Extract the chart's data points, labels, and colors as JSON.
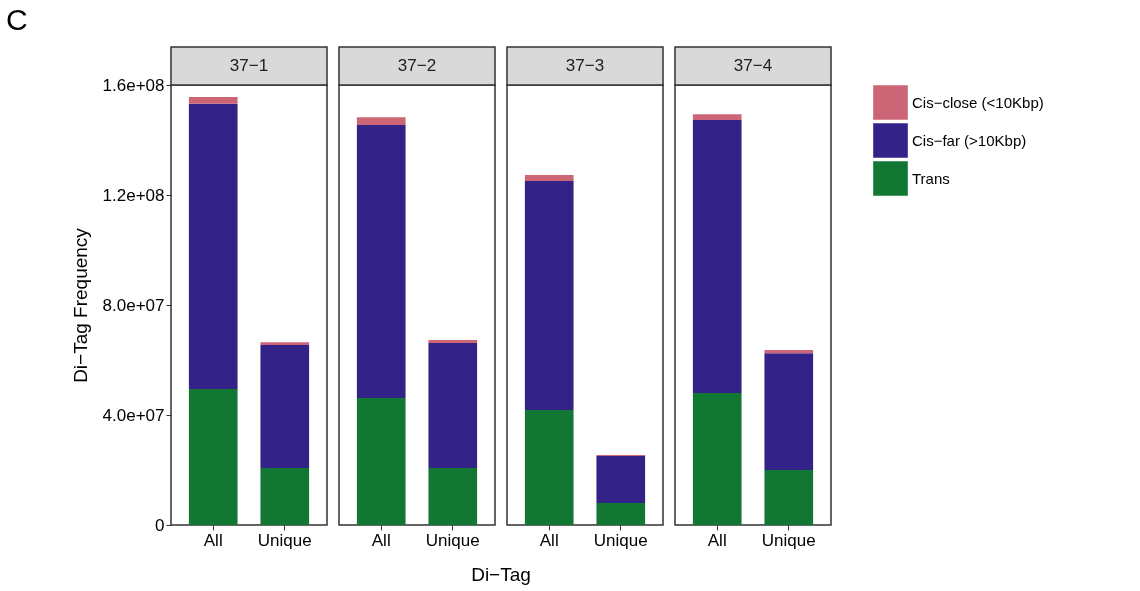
{
  "chart_data": [
    {
      "type": "bar",
      "title": "37−1",
      "stacked": true,
      "categories": [
        "All",
        "Unique"
      ],
      "ylabel": "Di−Tag Frequency",
      "annotations": [
        "C"
      ],
      "ylim": [
        0,
        160000000
      ],
      "yticks": [
        {
          "value": 0,
          "label": "0"
        },
        {
          "value": 40000000,
          "label": "4.0e+07"
        },
        {
          "value": 80000000,
          "label": "8.0e+07"
        },
        {
          "value": 120000000,
          "label": "1.2e+08"
        },
        {
          "value": 160000000,
          "label": "1.6e+08"
        }
      ],
      "grid": false,
      "legend": "top right",
      "series": [
        {
          "name": "Trans",
          "color": "#117733",
          "values": [
            49500000,
            20700000
          ]
        },
        {
          "name": "Cis−far (>10Kbp)",
          "color": "#332288",
          "values": [
            103700000,
            44800000
          ]
        },
        {
          "name": "Cis−close (<10Kbp)",
          "color": "#cc6677",
          "values": [
            2400000,
            1000000
          ]
        }
      ]
    },
    {
      "type": "bar",
      "title": "37−2",
      "stacked": true,
      "categories": [
        "All",
        "Unique"
      ],
      "xlabel": "Di−Tag",
      "ylim": [
        0,
        160000000
      ],
      "tick_labels": "x",
      "grid": false,
      "series": [
        {
          "name": "Trans",
          "color": "#117733",
          "values": [
            46200000,
            20700000
          ]
        },
        {
          "name": "Cis−far (>10Kbp)",
          "color": "#332288",
          "values": [
            99300000,
            45500000
          ]
        },
        {
          "name": "Cis−close (<10Kbp)",
          "color": "#cc6677",
          "values": [
            2800000,
            1100000
          ]
        }
      ]
    },
    {
      "type": "bar",
      "title": "37−3",
      "stacked": true,
      "categories": [
        "All",
        "Unique"
      ],
      "ylim": [
        0,
        160000000
      ],
      "tick_labels": "x",
      "grid": false,
      "series": [
        {
          "name": "Trans",
          "color": "#117733",
          "values": [
            41800000,
            8000000
          ]
        },
        {
          "name": "Cis−far (>10Kbp)",
          "color": "#332288",
          "values": [
            83300000,
            17100000
          ]
        },
        {
          "name": "Cis−close (<10Kbp)",
          "color": "#cc6677",
          "values": [
            2200000,
            400000
          ]
        }
      ]
    },
    {
      "type": "bar",
      "title": "37−4",
      "stacked": true,
      "categories": [
        "All",
        "Unique"
      ],
      "ylim": [
        0,
        160000000
      ],
      "tick_labels": "x",
      "grid": false,
      "series": [
        {
          "name": "Trans",
          "color": "#117733",
          "values": [
            48000000,
            20000000
          ]
        },
        {
          "name": "Cis−far (>10Kbp)",
          "color": "#332288",
          "values": [
            99300000,
            42500000
          ]
        },
        {
          "name": "Cis−close (<10Kbp)",
          "color": "#cc6677",
          "values": [
            2100000,
            1100000
          ]
        }
      ]
    }
  ]
}
